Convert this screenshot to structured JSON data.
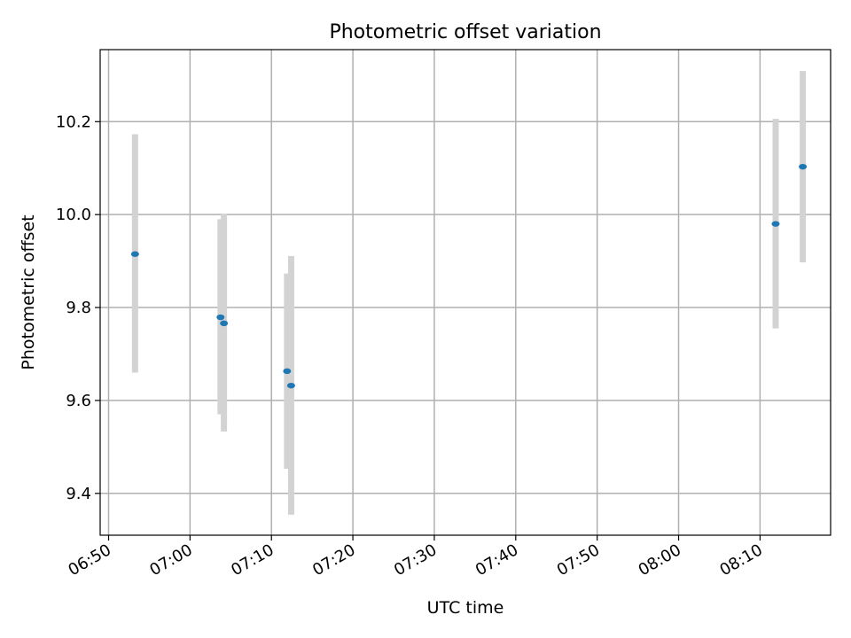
{
  "chart_data": {
    "type": "scatter",
    "title": "Photometric offset variation",
    "xlabel": "UTC time",
    "ylabel": "Photometric offset",
    "x_tick_labels": [
      "06:50",
      "07:00",
      "07:10",
      "07:20",
      "07:30",
      "07:40",
      "07:50",
      "08:00",
      "08:10"
    ],
    "y_tick_labels": [
      "9.4",
      "9.6",
      "9.8",
      "10.0",
      "10.2"
    ],
    "xlim": [
      "06:48:58",
      "08:18:40"
    ],
    "ylim": [
      9.31,
      10.355
    ],
    "grid": true,
    "legend": "none",
    "point_color": "#1f77b4",
    "errorbar_color": "#d3d3d3",
    "points": [
      {
        "x": "06:53:15",
        "y": 9.915,
        "yerr_low": 9.66,
        "yerr_high": 10.173
      },
      {
        "x": "07:03:45",
        "y": 9.779,
        "yerr_low": 9.57,
        "yerr_high": 9.99
      },
      {
        "x": "07:04:10",
        "y": 9.766,
        "yerr_low": 9.533,
        "yerr_high": 10.002
      },
      {
        "x": "07:11:55",
        "y": 9.663,
        "yerr_low": 9.453,
        "yerr_high": 9.873
      },
      {
        "x": "07:12:25",
        "y": 9.632,
        "yerr_low": 9.354,
        "yerr_high": 9.911
      },
      {
        "x": "08:11:55",
        "y": 9.98,
        "yerr_low": 9.755,
        "yerr_high": 10.206
      },
      {
        "x": "08:15:15",
        "y": 10.103,
        "yerr_low": 9.897,
        "yerr_high": 10.309
      }
    ]
  }
}
